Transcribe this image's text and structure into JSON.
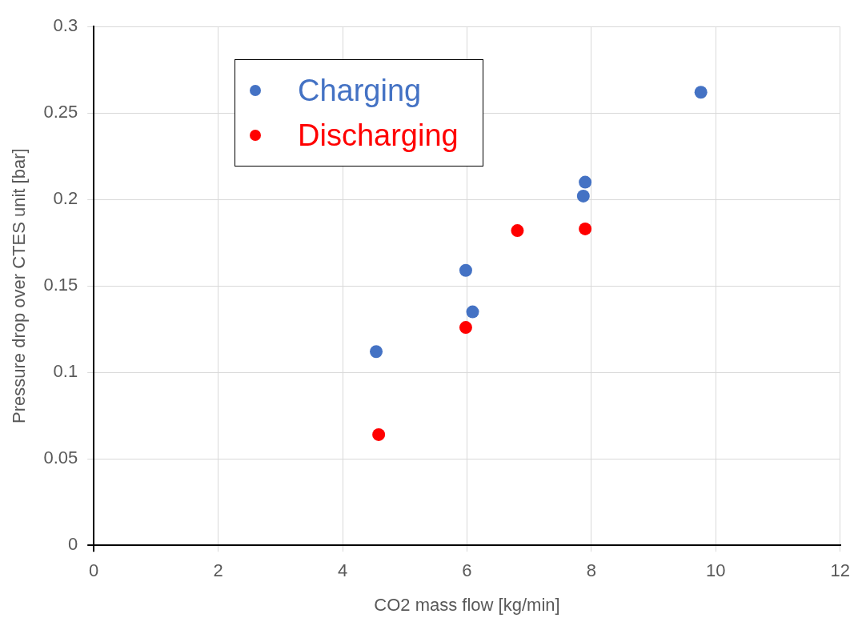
{
  "chart_data": {
    "type": "scatter",
    "xlabel": "CO2 mass flow [kg/min]",
    "ylabel": "Pressure drop over CTES unit [bar]",
    "series": [
      {
        "name": "Charging",
        "color": "#4472c4",
        "x": [
          4.54,
          5.98,
          6.09,
          7.87,
          7.9,
          9.76
        ],
        "values": [
          0.112,
          0.159,
          0.135,
          0.202,
          0.21,
          0.262
        ]
      },
      {
        "name": "Discharging",
        "color": "#ff0000",
        "x": [
          4.58,
          5.98,
          6.81,
          7.9
        ],
        "values": [
          0.064,
          0.126,
          0.182,
          0.183
        ]
      }
    ],
    "xlim": [
      0,
      12
    ],
    "xticks": [
      0,
      2,
      4,
      6,
      8,
      10,
      12
    ],
    "ylim": [
      0,
      0.3
    ],
    "yticks": [
      0,
      0.05,
      0.1,
      0.15,
      0.2,
      0.25,
      0.3
    ],
    "grid": true,
    "legend": "top left",
    "marker": "circle"
  }
}
